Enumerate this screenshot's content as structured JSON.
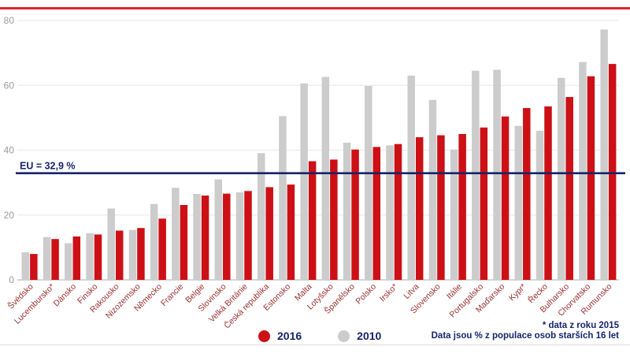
{
  "chart_data": {
    "type": "bar",
    "title": "",
    "unit": "%",
    "categories": [
      "Švédsko",
      "Lucembursko*",
      "Dánsko",
      "Finsko",
      "Rakousko",
      "Nizozemsko",
      "Německo",
      "Francie",
      "Belgie",
      "Slovinsko",
      "Velká Británie",
      "Česká republika",
      "Estonsko",
      "Malta",
      "Lotyšsko",
      "Španělsko",
      "Polsko",
      "Irsko*",
      "Litva",
      "Slovensko",
      "Itálie",
      "Portugalsko",
      "Maďarsko",
      "Kypr*",
      "Řecko",
      "Bulharsko",
      "Chorvatsko",
      "Rumunsko"
    ],
    "series": [
      {
        "name": "2016",
        "color": "#cc1016",
        "values": [
          8.0,
          12.6,
          13.4,
          14.0,
          15.2,
          16.0,
          18.9,
          23.1,
          26.0,
          26.6,
          27.4,
          28.6,
          29.4,
          36.6,
          37.1,
          40.2,
          41.0,
          41.9,
          44.0,
          44.6,
          45.0,
          47.0,
          50.4,
          53.0,
          53.5,
          56.4,
          62.8,
          66.6
        ]
      },
      {
        "name": "2010",
        "color": "#cccccc",
        "values": [
          8.5,
          13.2,
          11.3,
          14.4,
          22.0,
          15.4,
          23.4,
          28.4,
          26.5,
          31.0,
          27.0,
          39.1,
          50.5,
          60.6,
          62.6,
          42.3,
          59.8,
          41.5,
          63.0,
          55.5,
          40.2,
          64.5,
          64.8,
          47.5,
          46.0,
          62.3,
          67.2,
          77.2
        ]
      }
    ],
    "bar_draw_order": [
      "2010",
      "2016"
    ],
    "reference_line": {
      "label": "EU = 32,9 %",
      "value": 32.9,
      "color": "#16246b"
    },
    "ylim": [
      0,
      80
    ],
    "y_ticks": [
      0,
      20,
      40,
      60,
      80
    ],
    "grid": "horizontal",
    "legend_position": "bottom-center"
  },
  "legend": {
    "items": [
      {
        "label": "2016",
        "color": "#cc1016"
      },
      {
        "label": "2010",
        "color": "#cccccc"
      }
    ]
  },
  "footnote": {
    "line1": "* data z roku 2015",
    "line2": "Data jsou % z populace osob starších 16 let"
  },
  "styles": {
    "top_border_color": "#d8262c",
    "grid_color": "#ececec",
    "zero_axis_color": "#c8c8c8",
    "axis_tick_label_color": "#9a9a9a",
    "category_label_color": "#9b3030",
    "navy": "#16246b"
  }
}
